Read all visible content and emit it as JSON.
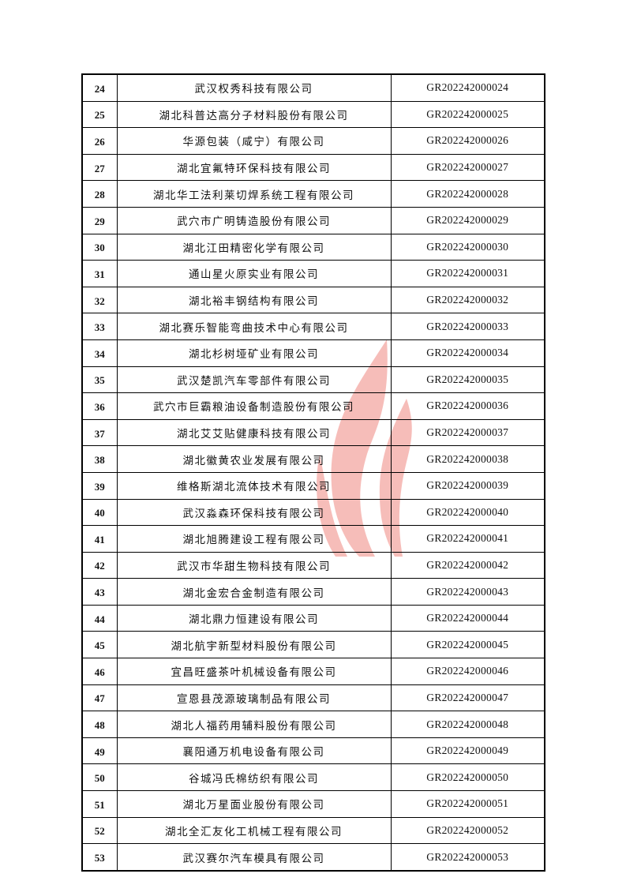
{
  "table": {
    "rows": [
      {
        "no": "24",
        "name": "武汉权秀科技有限公司",
        "code": "GR202242000024"
      },
      {
        "no": "25",
        "name": "湖北科普达高分子材料股份有限公司",
        "code": "GR202242000025"
      },
      {
        "no": "26",
        "name": "华源包装（咸宁）有限公司",
        "code": "GR202242000026"
      },
      {
        "no": "27",
        "name": "湖北宜氟特环保科技有限公司",
        "code": "GR202242000027"
      },
      {
        "no": "28",
        "name": "湖北华工法利莱切焊系统工程有限公司",
        "code": "GR202242000028"
      },
      {
        "no": "29",
        "name": "武穴市广明铸造股份有限公司",
        "code": "GR202242000029"
      },
      {
        "no": "30",
        "name": "湖北江田精密化学有限公司",
        "code": "GR202242000030"
      },
      {
        "no": "31",
        "name": "通山星火原实业有限公司",
        "code": "GR202242000031"
      },
      {
        "no": "32",
        "name": "湖北裕丰钢结构有限公司",
        "code": "GR202242000032"
      },
      {
        "no": "33",
        "name": "湖北赛乐智能弯曲技术中心有限公司",
        "code": "GR202242000033"
      },
      {
        "no": "34",
        "name": "湖北杉树垭矿业有限公司",
        "code": "GR202242000034"
      },
      {
        "no": "35",
        "name": "武汉楚凯汽车零部件有限公司",
        "code": "GR202242000035"
      },
      {
        "no": "36",
        "name": "武穴市巨霸粮油设备制造股份有限公司",
        "code": "GR202242000036"
      },
      {
        "no": "37",
        "name": "湖北艾艾贴健康科技有限公司",
        "code": "GR202242000037"
      },
      {
        "no": "38",
        "name": "湖北徽黄农业发展有限公司",
        "code": "GR202242000038"
      },
      {
        "no": "39",
        "name": "维格斯湖北流体技术有限公司",
        "code": "GR202242000039"
      },
      {
        "no": "40",
        "name": "武汉淼森环保科技有限公司",
        "code": "GR202242000040"
      },
      {
        "no": "41",
        "name": "湖北旭腾建设工程有限公司",
        "code": "GR202242000041"
      },
      {
        "no": "42",
        "name": "武汉市华甜生物科技有限公司",
        "code": "GR202242000042"
      },
      {
        "no": "43",
        "name": "湖北金宏合金制造有限公司",
        "code": "GR202242000043"
      },
      {
        "no": "44",
        "name": "湖北鼎力恒建设有限公司",
        "code": "GR202242000044"
      },
      {
        "no": "45",
        "name": "湖北航宇新型材料股份有限公司",
        "code": "GR202242000045"
      },
      {
        "no": "46",
        "name": "宜昌旺盛茶叶机械设备有限公司",
        "code": "GR202242000046"
      },
      {
        "no": "47",
        "name": "宣恩县茂源玻璃制品有限公司",
        "code": "GR202242000047"
      },
      {
        "no": "48",
        "name": "湖北人福药用辅料股份有限公司",
        "code": "GR202242000048"
      },
      {
        "no": "49",
        "name": "襄阳通万机电设备有限公司",
        "code": "GR202242000049"
      },
      {
        "no": "50",
        "name": "谷城冯氏棉纺织有限公司",
        "code": "GR202242000050"
      },
      {
        "no": "51",
        "name": "湖北万星面业股份有限公司",
        "code": "GR202242000051"
      },
      {
        "no": "52",
        "name": "湖北全汇友化工机械工程有限公司",
        "code": "GR202242000052"
      },
      {
        "no": "53",
        "name": "武汉赛尔汽车模具有限公司",
        "code": "GR202242000053"
      }
    ]
  },
  "watermark": {
    "icon": "flame-logo-watermark",
    "color": "#e8443a"
  }
}
